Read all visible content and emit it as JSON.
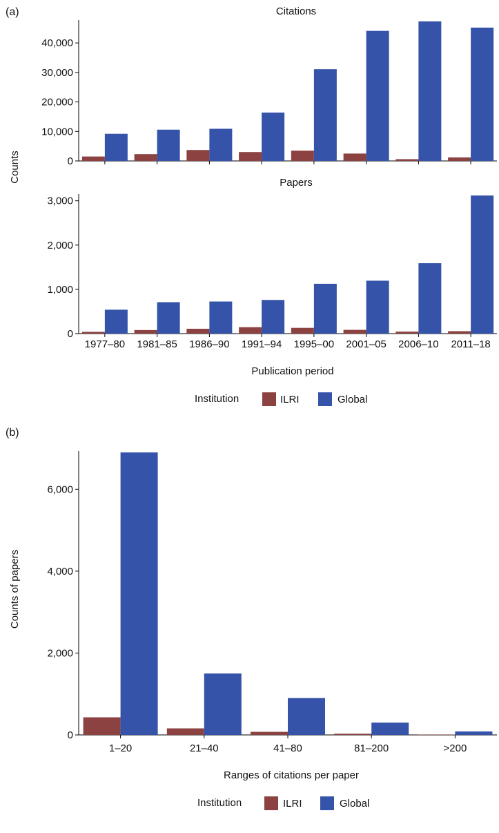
{
  "colors": {
    "ilri": "#8b4240",
    "global": "#3553a8"
  },
  "panel_a": {
    "label": "(a)",
    "ylabel": "Counts",
    "xlabel": "Publication period"
  },
  "panel_b": {
    "label": "(b)",
    "ylabel": "Counts of papers",
    "xlabel": "Ranges of citations per paper"
  },
  "legend": {
    "title": "Institution",
    "items": [
      "ILRI",
      "Global"
    ]
  },
  "chart_data": [
    {
      "type": "bar",
      "title": "Citations",
      "categories": [
        "1977–80",
        "1981–85",
        "1986–90",
        "1991–94",
        "1995–00",
        "2001–05",
        "2006–10",
        "2011–18"
      ],
      "series": [
        {
          "name": "ILRI",
          "values": [
            1500,
            2300,
            3700,
            3000,
            3500,
            2500,
            600,
            1200
          ]
        },
        {
          "name": "Global",
          "values": [
            9200,
            10600,
            10900,
            16400,
            31100,
            44100,
            47300,
            45200
          ]
        }
      ],
      "ylim": [
        0,
        47300
      ],
      "yticks": [
        0,
        10000,
        20000,
        30000,
        40000
      ],
      "ytick_labels": [
        "0",
        "10,000",
        "20,000",
        "30,000",
        "40,000"
      ]
    },
    {
      "type": "bar",
      "title": "Papers",
      "categories": [
        "1977–80",
        "1981–85",
        "1986–90",
        "1991–94",
        "1995–00",
        "2001–05",
        "2006–10",
        "2011–18"
      ],
      "series": [
        {
          "name": "ILRI",
          "values": [
            40,
            80,
            110,
            145,
            130,
            85,
            45,
            55
          ]
        },
        {
          "name": "Global",
          "values": [
            540,
            710,
            725,
            760,
            1125,
            1195,
            1590,
            3120
          ]
        }
      ],
      "ylim": [
        0,
        3120
      ],
      "yticks": [
        0,
        1000,
        2000,
        3000
      ],
      "ytick_labels": [
        "0",
        "1,000",
        "2,000",
        "3,000"
      ]
    },
    {
      "type": "bar",
      "title": "",
      "categories": [
        "1–20",
        "21–40",
        "41–80",
        "81–200",
        ">200"
      ],
      "series": [
        {
          "name": "ILRI",
          "values": [
            430,
            160,
            75,
            30,
            10
          ]
        },
        {
          "name": "Global",
          "values": [
            6900,
            1500,
            900,
            300,
            85
          ]
        }
      ],
      "ylim": [
        0,
        6900
      ],
      "yticks": [
        0,
        2000,
        4000,
        6000
      ],
      "ytick_labels": [
        "0",
        "2,000",
        "4,000",
        "6,000"
      ]
    }
  ]
}
